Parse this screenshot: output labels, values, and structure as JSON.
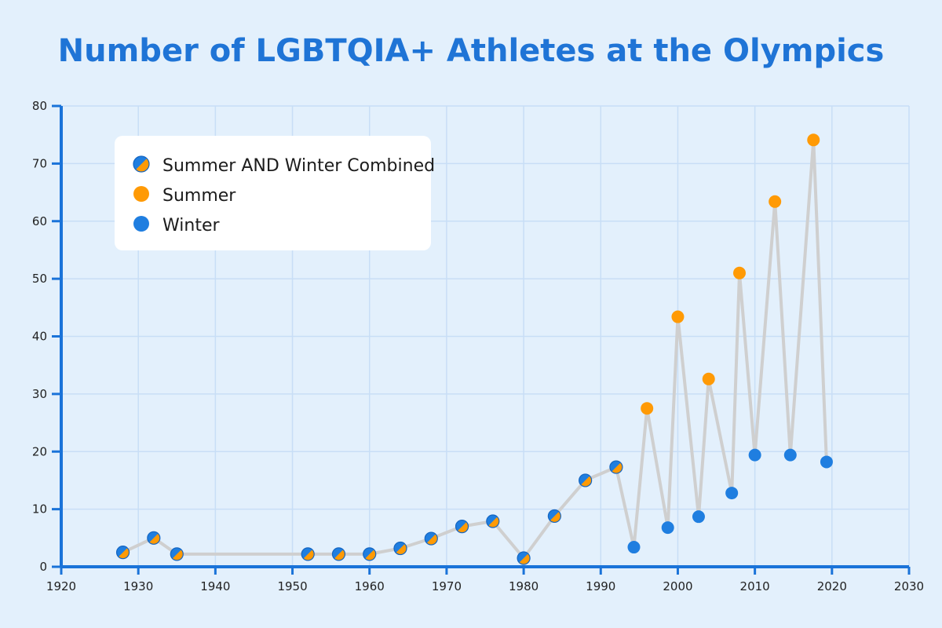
{
  "chart_data": {
    "type": "scatter",
    "title": "Number of LGBTQIA+ Athletes at the Olympics",
    "xlabel": "",
    "ylabel": "",
    "xlim": [
      1920,
      2030
    ],
    "ylim": [
      0,
      80
    ],
    "x_ticks": [
      1920,
      1930,
      1940,
      1950,
      1960,
      1970,
      1980,
      1990,
      2000,
      2010,
      2020,
      2030
    ],
    "y_ticks": [
      0,
      10,
      20,
      30,
      40,
      50,
      60,
      70,
      80
    ],
    "grid": true,
    "legend_position": "top-left",
    "connecting_line_color": "#cfcfcf",
    "series": [
      {
        "name": "Summer AND Winter Combined",
        "color_summer": "#ff9a05",
        "color_winter": "#1f7ee0",
        "points": [
          {
            "x": 1928,
            "y": 2.5
          },
          {
            "x": 1932,
            "y": 5
          },
          {
            "x": 1935,
            "y": 2.2
          },
          {
            "x": 1952,
            "y": 2.2
          },
          {
            "x": 1956,
            "y": 2.2
          },
          {
            "x": 1960,
            "y": 2.2
          },
          {
            "x": 1964,
            "y": 3.2
          },
          {
            "x": 1968,
            "y": 4.9
          },
          {
            "x": 1972,
            "y": 7
          },
          {
            "x": 1976,
            "y": 7.9
          },
          {
            "x": 1980,
            "y": 1.5
          },
          {
            "x": 1984,
            "y": 8.8
          },
          {
            "x": 1988,
            "y": 15
          },
          {
            "x": 1992,
            "y": 17.3
          }
        ]
      },
      {
        "name": "Summer",
        "color": "#ff9a05",
        "points": [
          {
            "x": 1996,
            "y": 27.5
          },
          {
            "x": 2000,
            "y": 43.4
          },
          {
            "x": 2004,
            "y": 32.6
          },
          {
            "x": 2008,
            "y": 51
          },
          {
            "x": 2012.6,
            "y": 63.4
          },
          {
            "x": 2017.6,
            "y": 74.1
          }
        ]
      },
      {
        "name": "Winter",
        "color": "#1f7ee0",
        "points": [
          {
            "x": 1994.3,
            "y": 3.4
          },
          {
            "x": 1998.7,
            "y": 6.8
          },
          {
            "x": 2002.7,
            "y": 8.7
          },
          {
            "x": 2007,
            "y": 12.8
          },
          {
            "x": 2010,
            "y": 19.4
          },
          {
            "x": 2014.6,
            "y": 19.4
          },
          {
            "x": 2019.3,
            "y": 18.2
          }
        ]
      }
    ],
    "line_sequence": [
      {
        "x": 1928,
        "y": 2.5
      },
      {
        "x": 1932,
        "y": 5
      },
      {
        "x": 1935,
        "y": 2.2
      },
      {
        "x": 1952,
        "y": 2.2
      },
      {
        "x": 1956,
        "y": 2.2
      },
      {
        "x": 1960,
        "y": 2.2
      },
      {
        "x": 1964,
        "y": 3.2
      },
      {
        "x": 1968,
        "y": 4.9
      },
      {
        "x": 1972,
        "y": 7
      },
      {
        "x": 1976,
        "y": 7.9
      },
      {
        "x": 1980,
        "y": 1.5
      },
      {
        "x": 1984,
        "y": 8.8
      },
      {
        "x": 1988,
        "y": 15
      },
      {
        "x": 1992,
        "y": 17.3
      },
      {
        "x": 1994.3,
        "y": 3.4
      },
      {
        "x": 1996,
        "y": 27.5
      },
      {
        "x": 1998.7,
        "y": 6.8
      },
      {
        "x": 2000,
        "y": 43.4
      },
      {
        "x": 2002.7,
        "y": 8.7
      },
      {
        "x": 2004,
        "y": 32.6
      },
      {
        "x": 2007,
        "y": 12.8
      },
      {
        "x": 2008,
        "y": 51
      },
      {
        "x": 2010,
        "y": 19.4
      },
      {
        "x": 2012.6,
        "y": 63.4
      },
      {
        "x": 2014.6,
        "y": 19.4
      },
      {
        "x": 2017.6,
        "y": 74.1
      },
      {
        "x": 2019.3,
        "y": 18.2
      }
    ],
    "colors": {
      "background": "#e3f0fc",
      "title": "#1f74d6",
      "axis": "#1a73d9",
      "grid": "#c8def6",
      "legend_bg": "#ffffff"
    }
  }
}
